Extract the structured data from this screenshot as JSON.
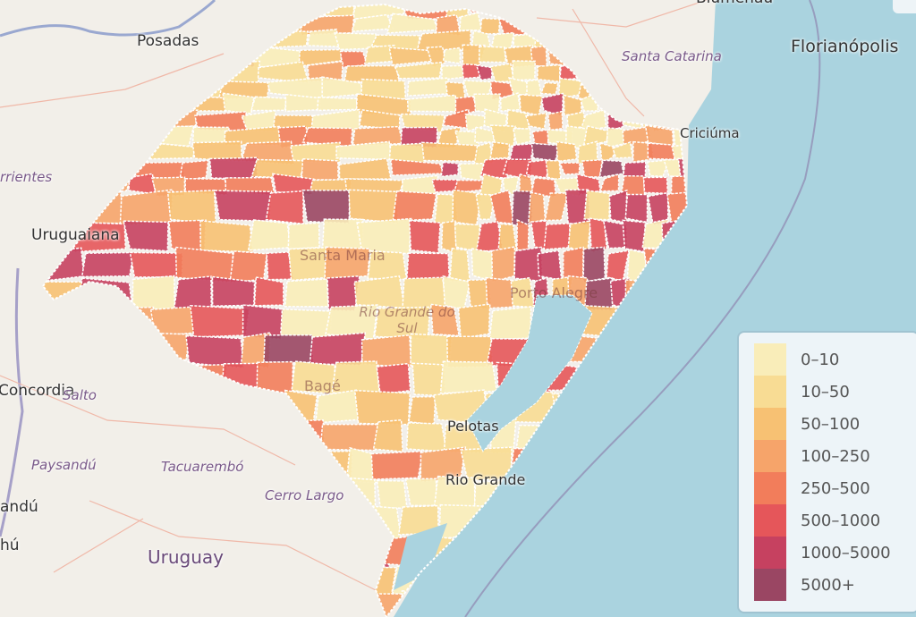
{
  "map": {
    "colors": {
      "land": "#f2efe9",
      "sea": "#aad3df",
      "border": "#ffffff"
    },
    "labels": {
      "cities": [
        "Posadas",
        "Florianópolis",
        "Uruguaiana",
        "Criciúma",
        "Blumenau",
        "Concordia",
        "Santa Maria",
        "Porto Alegre",
        "Pelotas",
        "Rio Grande",
        "Bagé",
        "andú",
        "hú"
      ],
      "regions": [
        "Santa Catarina",
        "rrientes",
        "Salto",
        "Paysandú",
        "Tacuarembó",
        "Cerro Largo",
        "Rio Grande do Sul"
      ],
      "countries": [
        "Uruguay"
      ]
    }
  },
  "legend": {
    "items": [
      {
        "label": "0–10",
        "color": "#f9edb9"
      },
      {
        "label": "10–50",
        "color": "#f8dc94"
      },
      {
        "label": "50–100",
        "color": "#f7c173"
      },
      {
        "label": "100–250",
        "color": "#f6a46a"
      },
      {
        "label": "250–500",
        "color": "#f27d5b"
      },
      {
        "label": "500–1000",
        "color": "#e5565a"
      },
      {
        "label": "1000–5000",
        "color": "#c64160"
      },
      {
        "label": "5000+",
        "color": "#9a4663"
      }
    ]
  }
}
